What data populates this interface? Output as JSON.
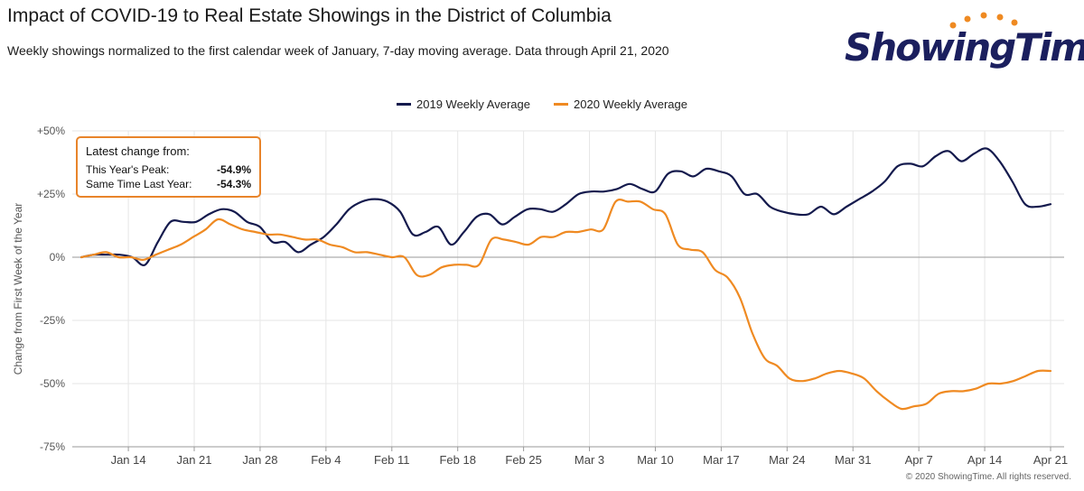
{
  "header": {
    "title": "Impact of COVID-19 to Real Estate Showings in the District of Columbia",
    "subtitle": "Weekly showings normalized to the first calendar week of January, 7-day moving average. Data through April 21, 2020"
  },
  "logo": {
    "text": "ShowingTime",
    "mark": "®"
  },
  "callout": {
    "heading": "Latest change from:",
    "rows": [
      {
        "label": "This Year's Peak:",
        "value": "-54.9%"
      },
      {
        "label": "Same Time Last Year:",
        "value": "-54.3%"
      }
    ]
  },
  "copyright": "© 2020 ShowingTime. All rights reserved.",
  "colors": {
    "series_2019": "#141a4d",
    "series_2020": "#ef8a22",
    "grid": "#e6e6e6",
    "accent": "#e8842a"
  },
  "chart_data": {
    "type": "line",
    "title": "Impact of COVID-19 to Real Estate Showings in the District of Columbia",
    "xlabel": "",
    "ylabel": "Change from First Week of the Year",
    "x_start": "Jan 9",
    "x_end": "Apr 21",
    "x_ticks": [
      {
        "day": 5,
        "label": "Jan 14"
      },
      {
        "day": 12,
        "label": "Jan 21"
      },
      {
        "day": 19,
        "label": "Jan 28"
      },
      {
        "day": 26,
        "label": "Feb 4"
      },
      {
        "day": 33,
        "label": "Feb 11"
      },
      {
        "day": 40,
        "label": "Feb 18"
      },
      {
        "day": 47,
        "label": "Feb 25"
      },
      {
        "day": 54,
        "label": "Mar 3"
      },
      {
        "day": 61,
        "label": "Mar 10"
      },
      {
        "day": 68,
        "label": "Mar 17"
      },
      {
        "day": 75,
        "label": "Mar 24"
      },
      {
        "day": 82,
        "label": "Mar 31"
      },
      {
        "day": 89,
        "label": "Apr 7"
      },
      {
        "day": 96,
        "label": "Apr 14"
      },
      {
        "day": 103,
        "label": "Apr 21"
      }
    ],
    "y_ticks": [
      {
        "value": 50,
        "label": "+50%"
      },
      {
        "value": 25,
        "label": "+25%"
      },
      {
        "value": 0,
        "label": "0%"
      },
      {
        "value": -25,
        "label": "-25%"
      },
      {
        "value": -50,
        "label": "-50%"
      },
      {
        "value": -75,
        "label": "-75%"
      }
    ],
    "ylim": [
      -75,
      50
    ],
    "grid": true,
    "legend_position": "top-center",
    "series": [
      {
        "name": "2019 Weekly Average",
        "color": "#141a4d",
        "values": [
          0,
          1,
          1,
          1,
          0,
          -3,
          6,
          14,
          14,
          14,
          17,
          19,
          18,
          14,
          12,
          6,
          6,
          2,
          5,
          8,
          13,
          19,
          22,
          23,
          22,
          18,
          9,
          10,
          12,
          5,
          10,
          16,
          17,
          13,
          16,
          19,
          19,
          18,
          21,
          25,
          26,
          26,
          27,
          29,
          27,
          26,
          33,
          34,
          32,
          35,
          34,
          32,
          25,
          25,
          20,
          18,
          17,
          17,
          20,
          17,
          20,
          23,
          26,
          30,
          36,
          37,
          36,
          40,
          42,
          38,
          41,
          43,
          38,
          30,
          21,
          20,
          21
        ]
      },
      {
        "name": "2020 Weekly Average",
        "color": "#ef8a22",
        "values": [
          0,
          1,
          2,
          0,
          0,
          -1,
          1,
          3,
          5,
          8,
          11,
          15,
          13,
          11,
          10,
          9,
          9,
          8,
          7,
          7,
          5,
          4,
          2,
          2,
          1,
          0,
          0,
          -7,
          -7,
          -4,
          -3,
          -3,
          -3,
          7,
          7,
          6,
          5,
          8,
          8,
          10,
          10,
          11,
          11,
          22,
          22,
          22,
          19,
          17,
          5,
          3,
          2,
          -5,
          -8,
          -16,
          -30,
          -40,
          -43,
          -48,
          -49,
          -48,
          -46,
          -45,
          -46,
          -48,
          -53,
          -57,
          -60,
          -59,
          -58,
          -54,
          -53,
          -53,
          -52,
          -50,
          -50,
          -49,
          -47,
          -45,
          -45
        ]
      }
    ]
  }
}
